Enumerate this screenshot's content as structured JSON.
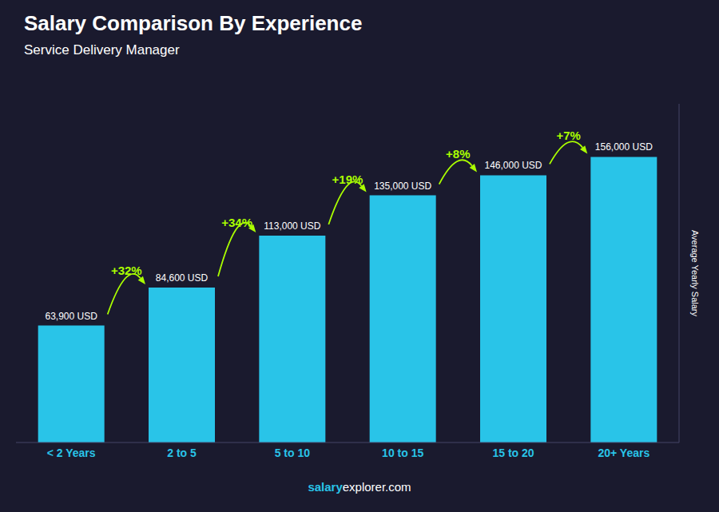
{
  "chart_data": {
    "type": "bar",
    "title": "Salary Comparison By Experience",
    "subtitle": "Service Delivery Manager",
    "categories": [
      "< 2 Years",
      "2 to 5",
      "5 to 10",
      "10 to 15",
      "15 to 20",
      "20+ Years"
    ],
    "values": [
      63900,
      84600,
      113000,
      135000,
      146000,
      156000
    ],
    "value_labels": [
      "63,900 USD",
      "84,600 USD",
      "113,000 USD",
      "135,000 USD",
      "146,000 USD",
      "156,000 USD"
    ],
    "data_labels": true,
    "color": "#29c4e8",
    "ylabel": "Average Yearly Salary",
    "ylim": [
      0,
      185000
    ],
    "tick_labels": "x",
    "grid": false,
    "annotations": [
      "+32%",
      "+34%",
      "+19%",
      "+8%",
      "+7%"
    ],
    "footer": [
      "salary",
      "explorer.com"
    ]
  }
}
